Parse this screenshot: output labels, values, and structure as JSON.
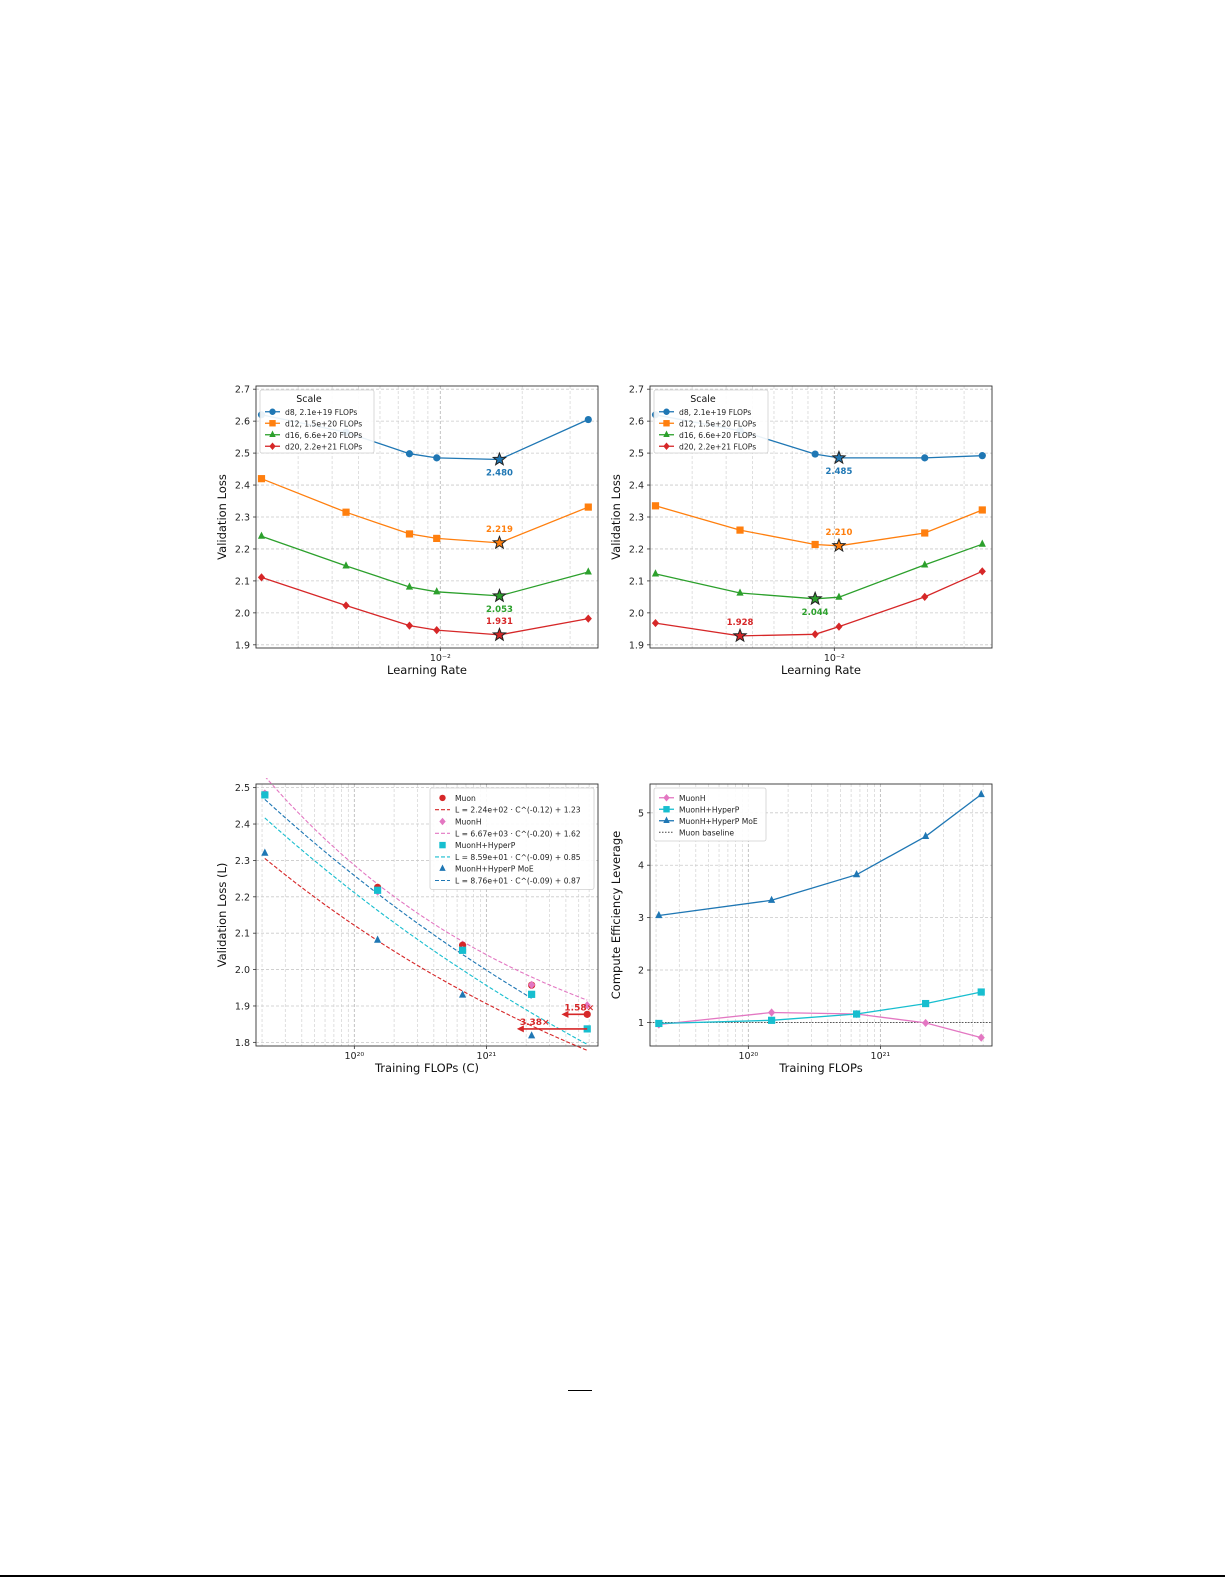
{
  "chart_data": [
    {
      "type": "line",
      "xlabel": "Learning Rate",
      "ylabel": "Validation Loss",
      "xscale": "log",
      "xlim": [
        0.0021,
        0.038
      ],
      "ylim": [
        1.89,
        2.71
      ],
      "yticks": [
        1.9,
        2.0,
        2.1,
        2.2,
        2.3,
        2.4,
        2.5,
        2.6,
        2.7
      ],
      "xticks": [
        {
          "value": 0.01,
          "label": "10⁻²"
        }
      ],
      "grid": true,
      "legend": {
        "title": "Scale",
        "placement": "top-left"
      },
      "series": [
        {
          "name": "d8, 2.1e+19 FLOPs",
          "color": "#1f77b4",
          "marker": "circle",
          "x": [
            0.0022,
            0.0045,
            0.0077,
            0.0097,
            0.0165,
            0.035
          ],
          "y": [
            2.62,
            2.565,
            2.498,
            2.485,
            2.48,
            2.605
          ],
          "best": {
            "x": 0.0165,
            "y": 2.48,
            "label": "2.480"
          }
        },
        {
          "name": "d12, 1.5e+20 FLOPs",
          "color": "#ff7f0e",
          "marker": "square",
          "x": [
            0.0022,
            0.0045,
            0.0077,
            0.0097,
            0.0165,
            0.035
          ],
          "y": [
            2.42,
            2.315,
            2.247,
            2.233,
            2.219,
            2.331
          ],
          "best": {
            "x": 0.0165,
            "y": 2.219,
            "label": "2.219"
          }
        },
        {
          "name": "d16, 6.6e+20 FLOPs",
          "color": "#2ca02c",
          "marker": "triangle",
          "x": [
            0.0022,
            0.0045,
            0.0077,
            0.0097,
            0.0165,
            0.035
          ],
          "y": [
            2.24,
            2.147,
            2.081,
            2.066,
            2.053,
            2.128
          ],
          "best": {
            "x": 0.0165,
            "y": 2.053,
            "label": "2.053"
          }
        },
        {
          "name": "d20, 2.2e+21 FLOPs",
          "color": "#d62728",
          "marker": "diamond",
          "x": [
            0.0022,
            0.0045,
            0.0077,
            0.0097,
            0.0165,
            0.035
          ],
          "y": [
            2.111,
            2.023,
            1.96,
            1.946,
            1.931,
            1.982
          ],
          "best": {
            "x": 0.0165,
            "y": 1.931,
            "label": "1.931"
          }
        }
      ]
    },
    {
      "type": "line",
      "xlabel": "Learning Rate",
      "ylabel": "Validation Loss",
      "xscale": "log",
      "xlim": [
        0.0021,
        0.038
      ],
      "ylim": [
        1.89,
        2.71
      ],
      "yticks": [
        1.9,
        2.0,
        2.1,
        2.2,
        2.3,
        2.4,
        2.5,
        2.6,
        2.7
      ],
      "xticks": [
        {
          "value": 0.01,
          "label": "10⁻²"
        }
      ],
      "grid": true,
      "legend": {
        "title": "Scale",
        "placement": "top-left"
      },
      "series": [
        {
          "name": "d8, 2.1e+19 FLOPs",
          "color": "#1f77b4",
          "marker": "circle",
          "x": [
            0.0022,
            0.0045,
            0.0085,
            0.0104,
            0.0215,
            0.035
          ],
          "y": [
            2.62,
            2.57,
            2.497,
            2.485,
            2.485,
            2.492
          ],
          "best": {
            "x": 0.0104,
            "y": 2.485,
            "label": "2.485"
          }
        },
        {
          "name": "d12, 1.5e+20 FLOPs",
          "color": "#ff7f0e",
          "marker": "square",
          "x": [
            0.0022,
            0.0045,
            0.0085,
            0.0104,
            0.0215,
            0.035
          ],
          "y": [
            2.335,
            2.259,
            2.214,
            2.21,
            2.25,
            2.322
          ],
          "best": {
            "x": 0.0104,
            "y": 2.21,
            "label": "2.210"
          }
        },
        {
          "name": "d16, 6.6e+20 FLOPs",
          "color": "#2ca02c",
          "marker": "triangle",
          "x": [
            0.0022,
            0.0045,
            0.0085,
            0.0104,
            0.0215,
            0.035
          ],
          "y": [
            2.122,
            2.062,
            2.044,
            2.049,
            2.15,
            2.215
          ],
          "best": {
            "x": 0.0085,
            "y": 2.044,
            "label": "2.044"
          }
        },
        {
          "name": "d20, 2.2e+21 FLOPs",
          "color": "#d62728",
          "marker": "diamond",
          "x": [
            0.0022,
            0.0045,
            0.0085,
            0.0104,
            0.0215,
            0.035
          ],
          "y": [
            1.968,
            1.928,
            1.933,
            1.957,
            2.05,
            2.13
          ],
          "best": {
            "x": 0.0045,
            "y": 1.928,
            "label": "1.928"
          }
        }
      ]
    },
    {
      "type": "scatter",
      "xlabel": "Training FLOPs (C)",
      "ylabel": "Validation Loss (L)",
      "xscale": "log",
      "xlim": [
        1.8e+19,
        7e+21
      ],
      "ylim": [
        1.79,
        2.51
      ],
      "yticks": [
        1.8,
        1.9,
        2.0,
        2.1,
        2.2,
        2.3,
        2.4,
        2.5
      ],
      "xticks": [
        {
          "value": 1e+20,
          "label": "10²⁰"
        },
        {
          "value": 1e+21,
          "label": "10²¹"
        }
      ],
      "grid": true,
      "legend": {
        "placement": "top-right"
      },
      "series": [
        {
          "name": "Muon",
          "color": "#d62728",
          "marker": "circle",
          "x": [
            2.1e+19,
            1.5e+20,
            6.6e+20,
            2.2e+21,
            5.8e+21
          ],
          "y": [
            2.482,
            2.226,
            2.067,
            1.957,
            1.877
          ],
          "fit": {
            "label": "L = 2.24e+02 · C^(-0.12) + 1.23",
            "a": 224,
            "b": -0.12,
            "c": 1.23,
            "xmin": 2.1e+19,
            "xmax": 5.8e+21
          }
        },
        {
          "name": "MuonH",
          "color": "#e377c2",
          "marker": "diamond",
          "x": [
            2.1e+19,
            1.5e+20,
            6.6e+20,
            2.2e+21,
            5.8e+21
          ],
          "y": [
            2.484,
            2.214,
            2.054,
            1.958,
            1.902
          ],
          "fit": {
            "label": "L = 6.67e+03 · C^(-0.20) + 1.62",
            "a": 6670,
            "b": -0.2,
            "c": 1.62,
            "xmin": 2.1e+19,
            "xmax": 5.8e+21
          }
        },
        {
          "name": "MuonH+HyperP",
          "color": "#17becf",
          "marker": "square",
          "x": [
            2.1e+19,
            1.5e+20,
            6.6e+20,
            2.2e+21,
            5.8e+21
          ],
          "y": [
            2.48,
            2.218,
            2.053,
            1.932,
            1.837
          ],
          "fit": {
            "label": "L = 8.59e+01 · C^(-0.09) + 0.85",
            "a": 85.9,
            "b": -0.09,
            "c": 0.85,
            "xmin": 2.1e+19,
            "xmax": 5.8e+21
          }
        },
        {
          "name": "MuonH+HyperP MoE",
          "color": "#1f77b4",
          "marker": "triangle",
          "x": [
            2.1e+19,
            1.5e+20,
            6.6e+20,
            2.2e+21
          ],
          "y": [
            2.32,
            2.081,
            1.93,
            1.818
          ],
          "fit": {
            "label": "L = 8.76e+01 · C^(-0.09) + 0.87",
            "a": 87.6,
            "b": -0.09,
            "c": 0.87,
            "xmin": 2.1e+19,
            "xmax": 2.2e+21
          }
        }
      ],
      "annotations": [
        {
          "label": "1.58×",
          "y": 1.877,
          "x_from": 5.8e+21,
          "x_to": 3.7e+21,
          "color": "#d62728"
        },
        {
          "label": "3.38×",
          "y": 1.837,
          "x_from": 5.8e+21,
          "x_to": 1.7e+21,
          "color": "#d62728"
        }
      ]
    },
    {
      "type": "line",
      "xlabel": "Training FLOPs",
      "ylabel": "Compute Efficiency Leverage",
      "xscale": "log",
      "xlim": [
        1.8e+19,
        7e+21
      ],
      "ylim": [
        0.55,
        5.55
      ],
      "yticks": [
        1,
        2,
        3,
        4,
        5
      ],
      "xticks": [
        {
          "value": 1e+20,
          "label": "10²⁰"
        },
        {
          "value": 1e+21,
          "label": "10²¹"
        }
      ],
      "grid": true,
      "legend": {
        "placement": "top-left"
      },
      "series": [
        {
          "name": "MuonH",
          "color": "#e377c2",
          "marker": "diamond",
          "x": [
            2.1e+19,
            1.5e+20,
            6.6e+20,
            2.2e+21,
            5.8e+21
          ],
          "y": [
            0.96,
            1.19,
            1.16,
            0.99,
            0.71
          ]
        },
        {
          "name": "MuonH+HyperP",
          "color": "#17becf",
          "marker": "square",
          "x": [
            2.1e+19,
            1.5e+20,
            6.6e+20,
            2.2e+21,
            5.8e+21
          ],
          "y": [
            0.98,
            1.04,
            1.16,
            1.36,
            1.58
          ]
        },
        {
          "name": "MuonH+HyperP MoE",
          "color": "#1f77b4",
          "marker": "triangle",
          "x": [
            2.1e+19,
            1.5e+20,
            6.6e+20,
            2.2e+21,
            5.8e+21
          ],
          "y": [
            3.04,
            3.33,
            3.82,
            4.55,
            5.35
          ]
        }
      ],
      "baseline": {
        "name": "Muon baseline",
        "y": 1,
        "color": "#444444"
      }
    }
  ]
}
